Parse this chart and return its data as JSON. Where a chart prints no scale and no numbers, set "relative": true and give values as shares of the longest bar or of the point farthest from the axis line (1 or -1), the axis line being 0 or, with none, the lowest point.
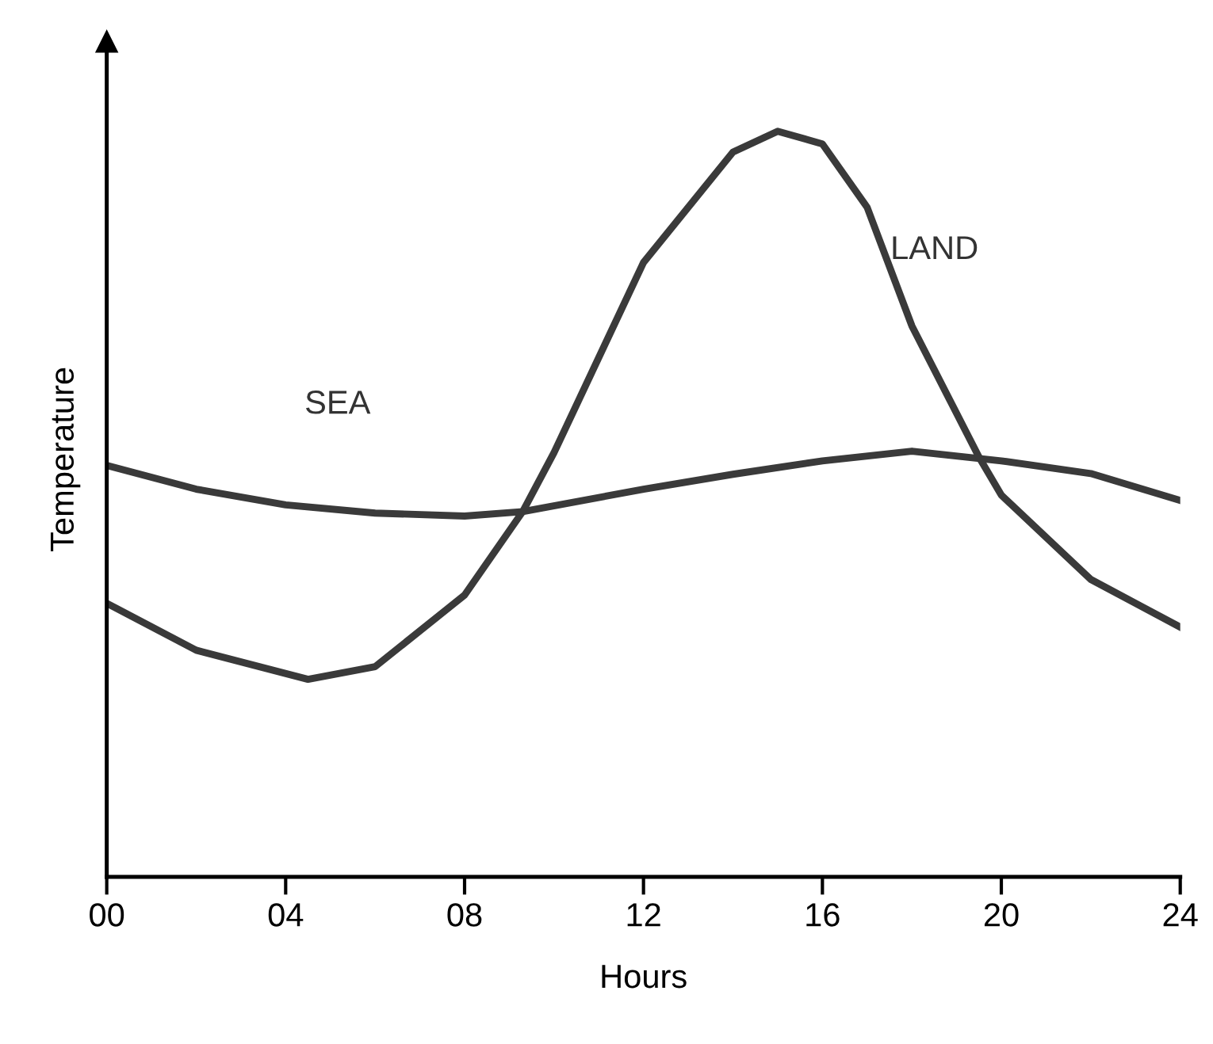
{
  "chart_data": {
    "type": "line",
    "xlabel": "Hours",
    "ylabel": "Temperature",
    "relative": true,
    "xlim": [
      0,
      24
    ],
    "xticks": [
      {
        "value": 0,
        "label": "00"
      },
      {
        "value": 4,
        "label": "04"
      },
      {
        "value": 8,
        "label": "08"
      },
      12,
      16,
      20,
      24
    ],
    "grid": false,
    "legend": false,
    "marker": "none",
    "line_style": "solid",
    "series": [
      {
        "name": "SEA",
        "color": "#3a3a3a",
        "x": [
          0,
          2,
          4,
          6,
          8,
          9.3,
          12,
          14,
          16,
          18,
          20,
          22,
          24
        ],
        "values": [
          0.552,
          0.52,
          0.499,
          0.488,
          0.484,
          0.49,
          0.52,
          0.54,
          0.558,
          0.571,
          0.558,
          0.541,
          0.505
        ]
      },
      {
        "name": "LAND",
        "color": "#3a3a3a",
        "x": [
          0,
          2,
          4.5,
          6,
          8,
          9.3,
          10,
          12,
          14,
          15,
          16,
          17,
          18,
          19.5,
          20,
          22,
          24
        ],
        "values": [
          0.367,
          0.304,
          0.265,
          0.282,
          0.378,
          0.49,
          0.569,
          0.824,
          0.972,
          1.0,
          0.983,
          0.898,
          0.739,
          0.563,
          0.512,
          0.399,
          0.335
        ]
      }
    ]
  }
}
